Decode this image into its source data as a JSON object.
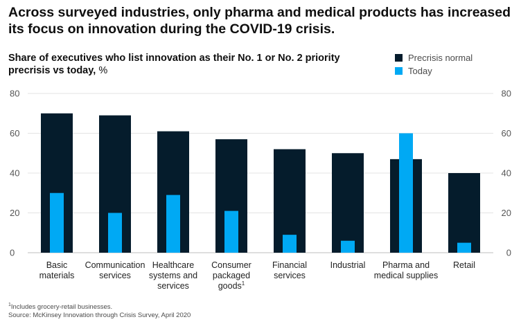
{
  "headline": "Across surveyed industries, only pharma and medical products has increased its focus on innovation during the COVID-19 crisis.",
  "chart_data": {
    "type": "bar",
    "title": "Share of executives who list innovation as their No. 1 or No. 2 priority precrisis vs today,",
    "unit": "%",
    "categories": [
      [
        "Basic",
        "materials"
      ],
      [
        "Communication",
        "services"
      ],
      [
        "Healthcare",
        "systems and",
        "services"
      ],
      [
        "Consumer",
        "packaged",
        "goods"
      ],
      [
        "Financial",
        "services"
      ],
      [
        "Industrial"
      ],
      [
        "Pharma and",
        "medical supplies"
      ],
      [
        "Retail"
      ]
    ],
    "category_footnote_marks": [
      "",
      "",
      "",
      "1",
      "",
      "",
      "",
      ""
    ],
    "series": [
      {
        "name": "Precrisis normal",
        "color": "#051c2c",
        "values": [
          70,
          69,
          61,
          57,
          52,
          50,
          47,
          40
        ]
      },
      {
        "name": "Today",
        "color": "#00a9f4",
        "values": [
          30,
          20,
          29,
          21,
          9,
          6,
          60,
          5
        ]
      }
    ],
    "ylim": [
      0,
      80
    ],
    "yticks": [
      0,
      20,
      40,
      60,
      80
    ],
    "grid": true,
    "legend": "top-right"
  },
  "footnotes": {
    "note_mark": "1",
    "note": "Includes grocery-retail businesses.",
    "source": "Source: McKinsey Innovation through Crisis Survey, April 2020"
  }
}
